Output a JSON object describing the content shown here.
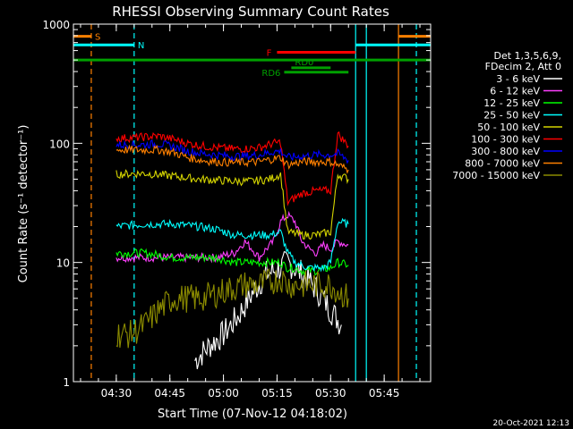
{
  "chart_data": {
    "type": "line",
    "title": "RHESSI Observing Summary Count Rates",
    "xlabel": "Start Time (07-Nov-12 04:18:02)",
    "ylabel": "Count Rate (s⁻¹ detector⁻¹)",
    "yscale": "log",
    "xlim_minutes": [
      0,
      100
    ],
    "ylim": [
      1,
      1000
    ],
    "x_ticks": [
      {
        "min": 12,
        "label": "04:30"
      },
      {
        "min": 27,
        "label": "04:45"
      },
      {
        "min": 42,
        "label": "05:00"
      },
      {
        "min": 57,
        "label": "05:15"
      },
      {
        "min": 72,
        "label": "05:30"
      },
      {
        "min": 87,
        "label": "05:45"
      }
    ],
    "y_ticks": [
      {
        "value": 1,
        "label": "1"
      },
      {
        "value": 10,
        "label": "10"
      },
      {
        "value": 100,
        "label": "100"
      },
      {
        "value": 1000,
        "label": "1000"
      }
    ],
    "legend": {
      "position": "right",
      "header": [
        "Det 1,3,5,6,9,",
        "FDecim 2, Att 0"
      ],
      "entries": [
        {
          "label": "3 - 6 keV",
          "color": "#ffffff"
        },
        {
          "label": "6 - 12 keV",
          "color": "#ff3fff"
        },
        {
          "label": "12 - 25 keV",
          "color": "#00ff00"
        },
        {
          "label": "25 - 50 keV",
          "color": "#00ffff"
        },
        {
          "label": "50 - 100 keV",
          "color": "#d4d400"
        },
        {
          "label": "100 - 300 keV",
          "color": "#ff0000"
        },
        {
          "label": "300 - 800 keV",
          "color": "#0000ff"
        },
        {
          "label": "800 - 7000 keV",
          "color": "#ff8000"
        },
        {
          "label": "7000 - 15000 keV",
          "color": "#8b8b00"
        }
      ]
    },
    "series": [
      {
        "name": "3 - 6 keV",
        "color": "#ffffff",
        "points": [
          [
            34,
            1.5
          ],
          [
            38,
            2
          ],
          [
            42,
            2.5
          ],
          [
            46,
            3.5
          ],
          [
            50,
            5.5
          ],
          [
            54,
            8
          ],
          [
            58,
            9
          ],
          [
            60,
            10
          ],
          [
            62,
            9
          ],
          [
            64,
            8
          ],
          [
            68,
            6
          ],
          [
            72,
            4
          ],
          [
            75,
            3
          ]
        ]
      },
      {
        "name": "6 - 12 keV",
        "color": "#ff3fff",
        "points": [
          [
            12,
            11
          ],
          [
            20,
            11
          ],
          [
            28,
            11
          ],
          [
            35,
            11
          ],
          [
            40,
            11
          ],
          [
            45,
            12
          ],
          [
            48,
            15
          ],
          [
            50,
            13
          ],
          [
            52,
            11
          ],
          [
            54,
            13
          ],
          [
            56,
            15
          ],
          [
            58,
            22
          ],
          [
            60,
            25
          ],
          [
            62,
            22
          ],
          [
            64,
            15
          ],
          [
            66,
            13
          ],
          [
            68,
            12
          ],
          [
            70,
            14
          ],
          [
            72,
            13
          ],
          [
            74,
            15
          ],
          [
            77,
            14
          ]
        ]
      },
      {
        "name": "12 - 25 keV",
        "color": "#00ff00",
        "points": [
          [
            12,
            12
          ],
          [
            20,
            12
          ],
          [
            28,
            11
          ],
          [
            35,
            11
          ],
          [
            40,
            11
          ],
          [
            45,
            10
          ],
          [
            50,
            10
          ],
          [
            55,
            10
          ],
          [
            58,
            10
          ],
          [
            60,
            9
          ],
          [
            62,
            9
          ],
          [
            64,
            8.5
          ],
          [
            68,
            8.5
          ],
          [
            72,
            9
          ],
          [
            74,
            10
          ],
          [
            77,
            9.5
          ]
        ]
      },
      {
        "name": "25 - 50 keV",
        "color": "#00ffff",
        "points": [
          [
            12,
            20
          ],
          [
            20,
            21
          ],
          [
            28,
            21
          ],
          [
            35,
            20
          ],
          [
            40,
            19
          ],
          [
            45,
            17
          ],
          [
            50,
            17
          ],
          [
            55,
            17
          ],
          [
            58,
            18
          ],
          [
            60,
            12
          ],
          [
            62,
            10
          ],
          [
            66,
            9
          ],
          [
            70,
            9
          ],
          [
            72,
            10
          ],
          [
            74,
            22
          ],
          [
            77,
            21
          ]
        ]
      },
      {
        "name": "50 - 100 keV",
        "color": "#d4d400",
        "points": [
          [
            12,
            55
          ],
          [
            20,
            56
          ],
          [
            28,
            53
          ],
          [
            35,
            50
          ],
          [
            40,
            49
          ],
          [
            45,
            48
          ],
          [
            50,
            48
          ],
          [
            55,
            50
          ],
          [
            58,
            55
          ],
          [
            60,
            18
          ],
          [
            64,
            17
          ],
          [
            68,
            17
          ],
          [
            72,
            18
          ],
          [
            74,
            55
          ],
          [
            77,
            50
          ]
        ]
      },
      {
        "name": "100 - 300 keV",
        "color": "#ff0000",
        "points": [
          [
            12,
            110
          ],
          [
            18,
            112
          ],
          [
            24,
            115
          ],
          [
            28,
            108
          ],
          [
            32,
            100
          ],
          [
            36,
            95
          ],
          [
            40,
            92
          ],
          [
            44,
            90
          ],
          [
            48,
            90
          ],
          [
            52,
            92
          ],
          [
            56,
            100
          ],
          [
            58,
            102
          ],
          [
            60,
            32
          ],
          [
            64,
            38
          ],
          [
            68,
            40
          ],
          [
            72,
            40
          ],
          [
            74,
            120
          ],
          [
            77,
            95
          ]
        ]
      },
      {
        "name": "300 - 800 keV",
        "color": "#0000ff",
        "points": [
          [
            12,
            97
          ],
          [
            18,
            97
          ],
          [
            24,
            99
          ],
          [
            28,
            94
          ],
          [
            32,
            86
          ],
          [
            36,
            82
          ],
          [
            40,
            80
          ],
          [
            44,
            78
          ],
          [
            48,
            78
          ],
          [
            52,
            80
          ],
          [
            56,
            85
          ],
          [
            58,
            86
          ],
          [
            60,
            76
          ],
          [
            64,
            78
          ],
          [
            68,
            80
          ],
          [
            72,
            80
          ],
          [
            74,
            82
          ],
          [
            77,
            72
          ]
        ]
      },
      {
        "name": "800 - 7000 keV",
        "color": "#ff8000",
        "points": [
          [
            12,
            88
          ],
          [
            18,
            88
          ],
          [
            24,
            88
          ],
          [
            28,
            84
          ],
          [
            32,
            76
          ],
          [
            36,
            72
          ],
          [
            40,
            70
          ],
          [
            44,
            69
          ],
          [
            48,
            69
          ],
          [
            52,
            70
          ],
          [
            56,
            74
          ],
          [
            58,
            76
          ],
          [
            60,
            66
          ],
          [
            64,
            70
          ],
          [
            68,
            70
          ],
          [
            72,
            70
          ],
          [
            74,
            66
          ],
          [
            77,
            60
          ]
        ]
      },
      {
        "name": "7000 - 15000 keV",
        "color": "#8b8b00",
        "points": [
          [
            12,
            2.5
          ],
          [
            16,
            2.5
          ],
          [
            20,
            3
          ],
          [
            24,
            4
          ],
          [
            28,
            5
          ],
          [
            32,
            5
          ],
          [
            36,
            5
          ],
          [
            40,
            5.5
          ],
          [
            44,
            6
          ],
          [
            48,
            6.5
          ],
          [
            52,
            6.5
          ],
          [
            56,
            7
          ],
          [
            58,
            7.5
          ],
          [
            60,
            6.5
          ],
          [
            64,
            6.5
          ],
          [
            68,
            6.5
          ],
          [
            72,
            6.5
          ],
          [
            75,
            5.5
          ],
          [
            77,
            5
          ]
        ]
      }
    ],
    "time_markers": [
      {
        "min": 5,
        "color": "#ff8000",
        "style": "dashed"
      },
      {
        "min": 17,
        "color": "#00ffff",
        "style": "dashed"
      },
      {
        "min": 79,
        "color": "#00ffff",
        "style": "solid"
      },
      {
        "min": 82,
        "color": "#00ffff",
        "style": "solid"
      },
      {
        "min": 91,
        "color": "#ff8000",
        "style": "solid"
      },
      {
        "min": 96,
        "color": "#00ffff",
        "style": "dashed"
      }
    ],
    "flag_bars": [
      {
        "label": "S",
        "color": "#ff8000",
        "level": 790,
        "segments": [
          [
            0,
            5
          ],
          [
            91,
            100
          ]
        ]
      },
      {
        "label": "N",
        "color": "#00ffff",
        "level": 670,
        "segments": [
          [
            0,
            17
          ],
          [
            79,
            100
          ]
        ]
      },
      {
        "label": "F",
        "color": "#ff0000",
        "level": 580,
        "segments": [
          [
            57,
            79
          ]
        ]
      },
      {
        "label": "",
        "color": "#00a000",
        "level": 500,
        "segments": [
          [
            0,
            100
          ]
        ]
      },
      {
        "label": "RD0",
        "color": "#00a000",
        "level": 430,
        "segments": [
          [
            61,
            72
          ]
        ]
      },
      {
        "label": "RD6",
        "color": "#00a000",
        "level": 395,
        "segments": [
          [
            59,
            77
          ]
        ]
      }
    ],
    "footer_date": "20-Oct-2021 12:13"
  }
}
